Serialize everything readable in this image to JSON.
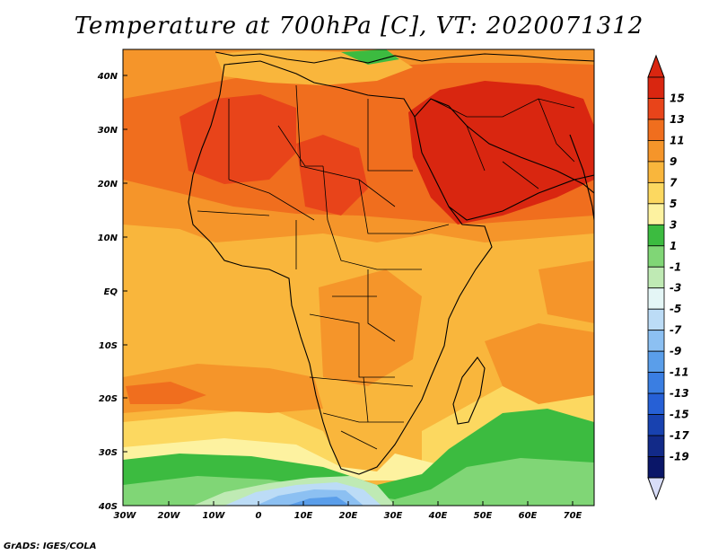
{
  "title": "Temperature at 700hPa [C], VT: 2020071312",
  "credit": "GrADS: IGES/COLA",
  "map": {
    "lat_ticks": [
      "40N",
      "30N",
      "20N",
      "10N",
      "EQ",
      "10S",
      "20S",
      "30S",
      "40S"
    ],
    "lon_ticks": [
      "30W",
      "20W",
      "10W",
      "0",
      "10E",
      "20E",
      "30E",
      "40E",
      "50E",
      "60E",
      "70E"
    ]
  },
  "colorbar": {
    "labels": [
      "15",
      "13",
      "11",
      "9",
      "7",
      "5",
      "3",
      "1",
      "-1",
      "-3",
      "-5",
      "-7",
      "-9",
      "-11",
      "-13",
      "-15",
      "-17",
      "-19"
    ],
    "colors": [
      "#d92610",
      "#e8441a",
      "#f06e1e",
      "#f5952a",
      "#f9b63c",
      "#fcd860",
      "#fdf2a0",
      "#3cbb40",
      "#80d676",
      "#bfeab4",
      "#e4f6f6",
      "#bcdcf6",
      "#8cc0f2",
      "#5a9eea",
      "#3a7ee2",
      "#2660d6",
      "#1842b0",
      "#122a88",
      "#0a1668"
    ],
    "top_arrow_color": "#d92610",
    "bottom_arrow_color": "#d8ddf8"
  }
}
